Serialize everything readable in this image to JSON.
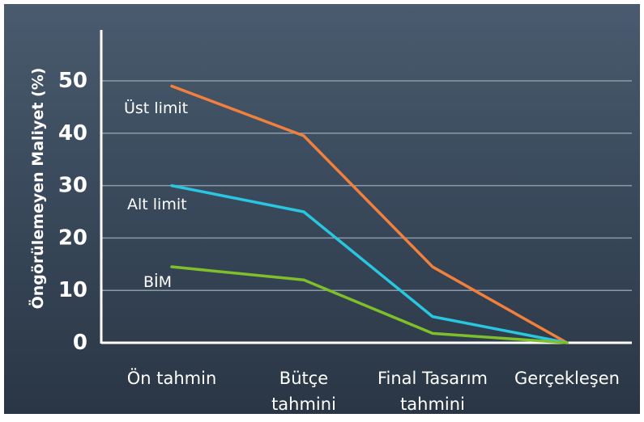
{
  "chart_data": {
    "type": "line",
    "title": "",
    "ylabel": "Öngörülemeyen Maliyet (%)",
    "xlabel": "",
    "categories": [
      [
        "Ön tahmin"
      ],
      [
        "Bütçe",
        "tahmini"
      ],
      [
        "Final Tasarım",
        "tahmini"
      ],
      [
        "Gerçekleşen"
      ]
    ],
    "yticks": [
      0,
      10,
      20,
      30,
      40,
      50
    ],
    "ylim": [
      0,
      50
    ],
    "grid": true,
    "series": [
      {
        "name": "Üst limit",
        "color": "#f0803c",
        "values": [
          49,
          39.5,
          14.5,
          0
        ]
      },
      {
        "name": "Alt limit",
        "color": "#29c6e0",
        "values": [
          30,
          25,
          5,
          0
        ]
      },
      {
        "name": "BİM",
        "color": "#7fbf2a",
        "values": [
          14.5,
          12,
          1.8,
          0
        ]
      }
    ]
  }
}
